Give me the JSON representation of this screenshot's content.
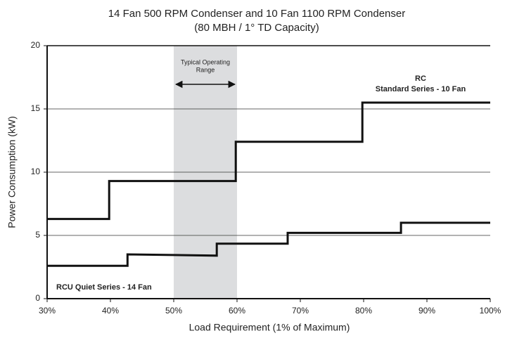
{
  "chart_data": {
    "type": "line",
    "title": [
      "14 Fan 500 RPM Condenser and 10 Fan 1100 RPM Condenser",
      "(80 MBH / 1° TD Capacity)"
    ],
    "x_label": "Load Requirement (1% of Maximum)",
    "y_label": "Power Consumption (kW)",
    "xlim": [
      30,
      100
    ],
    "xticks": [
      {
        "value": 30,
        "label": "30%"
      },
      {
        "value": 40,
        "label": "40%"
      },
      {
        "value": 50,
        "label": "50%"
      },
      {
        "value": 60,
        "label": "60%"
      },
      {
        "value": 70,
        "label": "70%"
      },
      {
        "value": 80,
        "label": "80%"
      },
      {
        "value": 90,
        "label": "90%"
      },
      {
        "value": 100,
        "label": "100%"
      }
    ],
    "ylim": [
      0,
      20
    ],
    "yticks": [
      0,
      5,
      10,
      15,
      20
    ],
    "grid": true,
    "shaded_range": {
      "x": [
        50,
        60
      ],
      "color": "#dcdddf",
      "label": [
        "Typical Operating",
        "Range"
      ]
    },
    "series": [
      {
        "name": [
          "RC",
          "Standard Series - 10 Fan"
        ],
        "color": "#111111",
        "x": [
          30,
          39.8,
          39.8,
          59.8,
          59.8,
          79.8,
          79.8,
          100
        ],
        "values": [
          6.3,
          6.3,
          9.3,
          9.3,
          12.4,
          12.4,
          15.5,
          15.5
        ]
      },
      {
        "name": [
          "RCU Quiet Series - 14 Fan"
        ],
        "color": "#111111",
        "x": [
          30,
          42.7,
          42.7,
          56.8,
          56.8,
          68,
          68,
          85.9,
          85.9,
          100
        ],
        "values": [
          2.6,
          2.6,
          3.5,
          3.4,
          4.35,
          4.35,
          5.2,
          5.2,
          6.0,
          6.0
        ]
      }
    ]
  }
}
